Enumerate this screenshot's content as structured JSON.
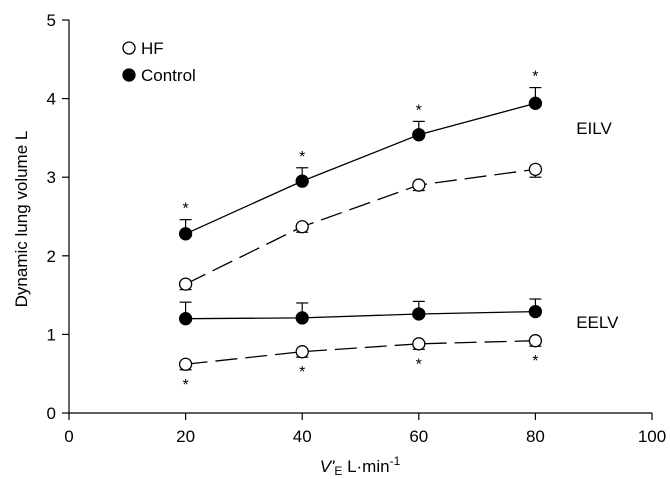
{
  "chart_data": {
    "type": "line",
    "xlabel_italic": "V'",
    "xlabel_sub": "E",
    "xlabel_rest": " L·min",
    "xlabel_sup": "-1",
    "ylabel": "Dynamic lung volume L",
    "xlim": [
      0,
      100
    ],
    "ylim": [
      0,
      5
    ],
    "x_ticks": [
      0,
      20,
      40,
      60,
      80,
      100
    ],
    "y_ticks": [
      0,
      1,
      2,
      3,
      4,
      5
    ],
    "grid": false,
    "legend_position": "top-left",
    "legend": [
      {
        "label": "HF",
        "marker": "open-circle"
      },
      {
        "label": "Control",
        "marker": "filled-circle"
      }
    ],
    "annotations": [
      {
        "text": "EILV",
        "x": 87,
        "y": 3.55
      },
      {
        "text": "EELV",
        "x": 87,
        "y": 1.08
      }
    ],
    "significance_marker": "*",
    "series": [
      {
        "name": "Control",
        "group": "EILV",
        "marker": "filled-circle",
        "line": "solid",
        "x": [
          20,
          40,
          60,
          80
        ],
        "y": [
          2.28,
          2.95,
          3.54,
          3.94
        ],
        "error_up": [
          0.18,
          0.17,
          0.17,
          0.2
        ],
        "error_down": [
          0,
          0,
          0,
          0
        ],
        "stars": [
          "above",
          "above",
          "above",
          "above"
        ]
      },
      {
        "name": "HF",
        "group": "EILV",
        "marker": "open-circle",
        "line": "dashed",
        "x": [
          20,
          40,
          60,
          80
        ],
        "y": [
          1.64,
          2.37,
          2.9,
          3.1
        ],
        "error_up": [
          0,
          0,
          0,
          0
        ],
        "error_down": [
          0.07,
          0.07,
          0.07,
          0.1
        ],
        "stars": []
      },
      {
        "name": "Control",
        "group": "EELV",
        "marker": "filled-circle",
        "line": "solid",
        "x": [
          20,
          40,
          60,
          80
        ],
        "y": [
          1.2,
          1.21,
          1.26,
          1.29
        ],
        "error_up": [
          0.21,
          0.19,
          0.16,
          0.16
        ],
        "error_down": [
          0,
          0,
          0,
          0
        ],
        "stars": []
      },
      {
        "name": "HF",
        "group": "EELV",
        "marker": "open-circle",
        "line": "dashed",
        "x": [
          20,
          40,
          60,
          80
        ],
        "y": [
          0.62,
          0.78,
          0.88,
          0.92
        ],
        "error_up": [
          0,
          0,
          0,
          0
        ],
        "error_down": [
          0.07,
          0.07,
          0.07,
          0.07
        ],
        "stars": [
          "below",
          "below",
          "below",
          "below"
        ]
      }
    ]
  }
}
